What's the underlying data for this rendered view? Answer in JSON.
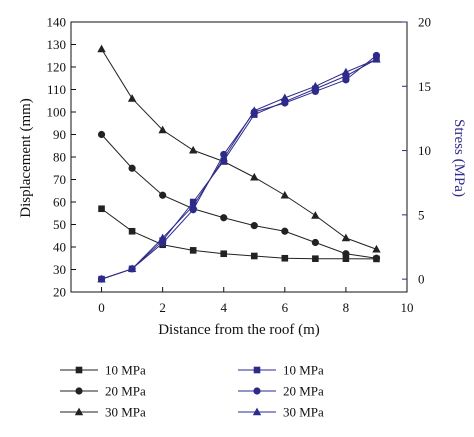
{
  "chart_data": {
    "type": "line",
    "x": [
      0,
      1,
      2,
      3,
      4,
      5,
      6,
      7,
      8,
      9
    ],
    "xlabel": "Distance from the roof (m)",
    "ylabel": "Displacement (mm)",
    "y2label": "Stress (MPa)",
    "xlim": [
      -1,
      10
    ],
    "ylim": [
      20,
      140
    ],
    "y2lim": [
      -1,
      20
    ],
    "xticks": [
      0,
      2,
      4,
      6,
      8,
      10
    ],
    "yticks": [
      20,
      30,
      40,
      50,
      60,
      70,
      80,
      90,
      100,
      110,
      120,
      130,
      140
    ],
    "y2ticks": [
      0,
      5,
      10,
      15,
      20
    ],
    "grid": false,
    "legend_position": "bottom",
    "colors": {
      "displacement": "#222222",
      "stress": "#2e2a8a",
      "axis_right": "#2e2a8a"
    },
    "series": [
      {
        "name": "10 MPa",
        "axis": "left",
        "marker": "square",
        "values": [
          57,
          47,
          41,
          38.5,
          37,
          36,
          35,
          34.8,
          34.8,
          34.7
        ]
      },
      {
        "name": "20 MPa",
        "axis": "left",
        "marker": "circle",
        "values": [
          90,
          75,
          63,
          57,
          53,
          49.5,
          47,
          42,
          37,
          35
        ]
      },
      {
        "name": "30 MPa",
        "axis": "left",
        "marker": "triangle",
        "values": [
          128,
          106,
          92,
          83,
          78,
          71,
          63,
          54,
          44,
          39
        ]
      },
      {
        "name": "10 MPa",
        "axis": "right",
        "marker": "square",
        "values": [
          0,
          0.8,
          3,
          6,
          9.2,
          12.8,
          13.8,
          14.8,
          15.8,
          17.1
        ]
      },
      {
        "name": "20 MPa",
        "axis": "right",
        "marker": "circle",
        "values": [
          0,
          0.8,
          2.8,
          5.4,
          9.7,
          13,
          13.7,
          14.6,
          15.5,
          17.4
        ]
      },
      {
        "name": "30 MPa",
        "axis": "right",
        "marker": "triangle",
        "values": [
          0,
          0.8,
          3.2,
          5.7,
          9.4,
          13.1,
          14.1,
          15,
          16.1,
          17.1
        ]
      }
    ]
  }
}
